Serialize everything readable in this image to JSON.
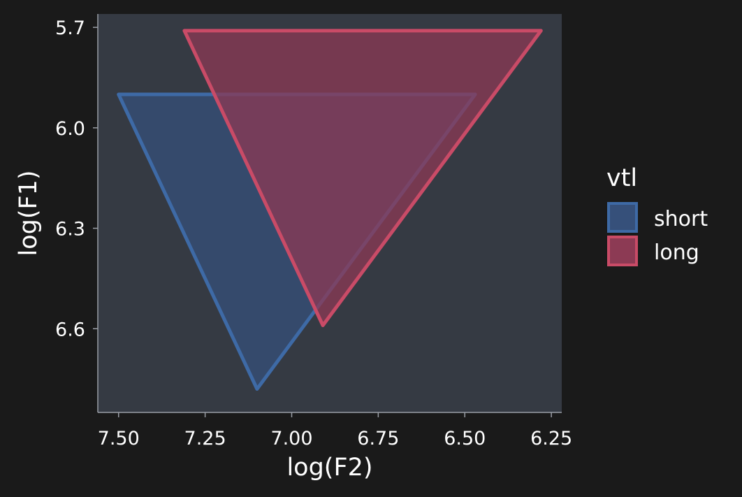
{
  "chart_data": {
    "type": "area",
    "xlabel": "log(F2)",
    "ylabel": "log(F1)",
    "xlim": [
      7.56,
      6.22
    ],
    "ylim": [
      5.66,
      6.85
    ],
    "x_reversed": true,
    "y_reversed": true,
    "x_ticks": [
      {
        "value": 7.5,
        "label": "7.50"
      },
      {
        "value": 7.25,
        "label": "7.25"
      },
      {
        "value": 7.0,
        "label": "7.00"
      },
      {
        "value": 6.75,
        "label": "6.75"
      },
      {
        "value": 6.5,
        "label": "6.50"
      },
      {
        "value": 6.25,
        "label": "6.25"
      }
    ],
    "y_ticks": [
      {
        "value": 5.7,
        "label": "5.7"
      },
      {
        "value": 6.0,
        "label": "6.0"
      },
      {
        "value": 6.3,
        "label": "6.3"
      },
      {
        "value": 6.6,
        "label": "6.6"
      }
    ],
    "grid": false,
    "legend": {
      "title": "vtl",
      "position": "right"
    },
    "series": [
      {
        "name": "short",
        "color": "#3e6aa6",
        "fill": "#36507a",
        "points": [
          {
            "x": 7.5,
            "y": 5.9
          },
          {
            "x": 6.47,
            "y": 5.9
          },
          {
            "x": 7.1,
            "y": 6.78
          }
        ]
      },
      {
        "name": "long",
        "color": "#c94b67",
        "fill": "#8c3a54",
        "points": [
          {
            "x": 7.31,
            "y": 5.71
          },
          {
            "x": 6.28,
            "y": 5.71
          },
          {
            "x": 6.91,
            "y": 6.59
          }
        ]
      }
    ]
  }
}
